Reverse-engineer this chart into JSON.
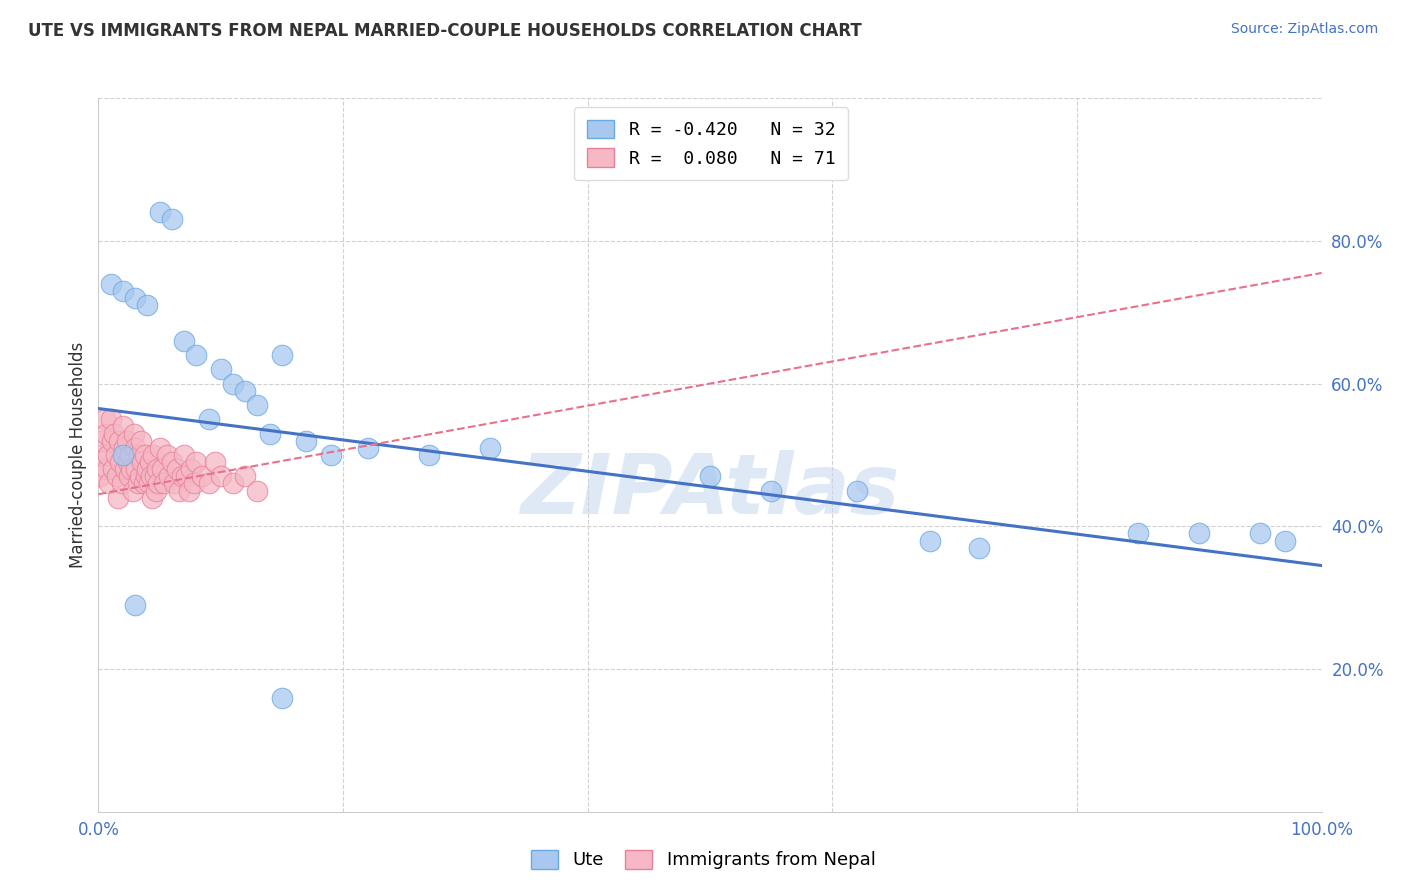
{
  "title": "UTE VS IMMIGRANTS FROM NEPAL MARRIED-COUPLE HOUSEHOLDS CORRELATION CHART",
  "source": "Source: ZipAtlas.com",
  "ylabel": "Married-couple Households",
  "xlim": [
    0.0,
    1.0
  ],
  "ylim": [
    0.0,
    1.0
  ],
  "ytick_labels": [
    "20.0%",
    "40.0%",
    "60.0%",
    "80.0%"
  ],
  "ytick_positions": [
    0.2,
    0.4,
    0.6,
    0.8
  ],
  "ute_color": "#A8C8F0",
  "nepal_color": "#F5B8C4",
  "ute_edge_color": "#6AAAE0",
  "nepal_edge_color": "#E8809A",
  "ute_line_color": "#4472C4",
  "nepal_line_color": "#E8708A",
  "background_color": "#FFFFFF",
  "grid_color": "#CCCCCC",
  "watermark": "ZIPAtlas",
  "legend_ute_r": "R = -0.420",
  "legend_ute_n": "N = 32",
  "legend_nepal_r": "R =  0.080",
  "legend_nepal_n": "N = 71",
  "ute_x": [
    0.01,
    0.02,
    0.02,
    0.03,
    0.04,
    0.05,
    0.06,
    0.07,
    0.08,
    0.09,
    0.1,
    0.11,
    0.12,
    0.13,
    0.14,
    0.15,
    0.17,
    0.19,
    0.22,
    0.27,
    0.32,
    0.5,
    0.55,
    0.62,
    0.68,
    0.72,
    0.85,
    0.9,
    0.95,
    0.97,
    0.03,
    0.15
  ],
  "ute_y": [
    0.74,
    0.73,
    0.5,
    0.72,
    0.71,
    0.84,
    0.83,
    0.66,
    0.64,
    0.55,
    0.62,
    0.6,
    0.59,
    0.57,
    0.53,
    0.64,
    0.52,
    0.5,
    0.51,
    0.5,
    0.51,
    0.47,
    0.45,
    0.45,
    0.38,
    0.37,
    0.39,
    0.39,
    0.39,
    0.38,
    0.29,
    0.16
  ],
  "nepal_x": [
    0.001,
    0.002,
    0.003,
    0.005,
    0.006,
    0.007,
    0.008,
    0.009,
    0.01,
    0.011,
    0.012,
    0.013,
    0.014,
    0.015,
    0.016,
    0.017,
    0.018,
    0.019,
    0.02,
    0.021,
    0.022,
    0.023,
    0.024,
    0.025,
    0.026,
    0.027,
    0.028,
    0.029,
    0.03,
    0.031,
    0.032,
    0.033,
    0.034,
    0.035,
    0.036,
    0.037,
    0.038,
    0.039,
    0.04,
    0.041,
    0.042,
    0.043,
    0.044,
    0.045,
    0.046,
    0.047,
    0.048,
    0.049,
    0.05,
    0.052,
    0.054,
    0.056,
    0.058,
    0.06,
    0.062,
    0.064,
    0.066,
    0.068,
    0.07,
    0.072,
    0.074,
    0.076,
    0.078,
    0.08,
    0.085,
    0.09,
    0.095,
    0.1,
    0.11,
    0.12,
    0.13
  ],
  "nepal_y": [
    0.47,
    0.5,
    0.52,
    0.55,
    0.53,
    0.48,
    0.5,
    0.46,
    0.55,
    0.52,
    0.48,
    0.53,
    0.5,
    0.47,
    0.44,
    0.52,
    0.49,
    0.46,
    0.54,
    0.51,
    0.48,
    0.52,
    0.49,
    0.47,
    0.5,
    0.48,
    0.45,
    0.53,
    0.51,
    0.48,
    0.46,
    0.5,
    0.47,
    0.52,
    0.49,
    0.46,
    0.5,
    0.47,
    0.48,
    0.46,
    0.49,
    0.47,
    0.44,
    0.5,
    0.47,
    0.45,
    0.48,
    0.46,
    0.51,
    0.48,
    0.46,
    0.5,
    0.47,
    0.49,
    0.46,
    0.48,
    0.45,
    0.47,
    0.5,
    0.47,
    0.45,
    0.48,
    0.46,
    0.49,
    0.47,
    0.46,
    0.49,
    0.47,
    0.46,
    0.47,
    0.45
  ],
  "ute_trend_x": [
    0.0,
    1.0
  ],
  "ute_trend_y": [
    0.565,
    0.345
  ],
  "nepal_trend_x": [
    0.0,
    1.0
  ],
  "nepal_trend_y": [
    0.445,
    0.755
  ]
}
